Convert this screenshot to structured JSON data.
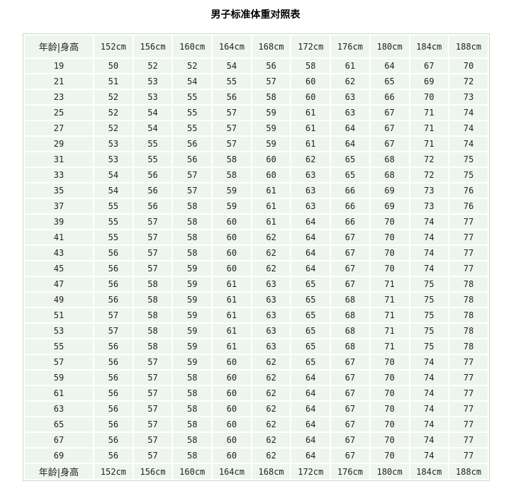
{
  "title": "男子标准体重对照表",
  "table": {
    "corner_label": "年龄|身高",
    "heights": [
      "152cm",
      "156cm",
      "160cm",
      "164cm",
      "168cm",
      "172cm",
      "176cm",
      "180cm",
      "184cm",
      "188cm"
    ],
    "rows": [
      {
        "age": "19",
        "weights": [
          50,
          52,
          52,
          54,
          56,
          58,
          61,
          64,
          67,
          70
        ]
      },
      {
        "age": "21",
        "weights": [
          51,
          53,
          54,
          55,
          57,
          60,
          62,
          65,
          69,
          72
        ]
      },
      {
        "age": "23",
        "weights": [
          52,
          53,
          55,
          56,
          58,
          60,
          63,
          66,
          70,
          73
        ]
      },
      {
        "age": "25",
        "weights": [
          52,
          54,
          55,
          57,
          59,
          61,
          63,
          67,
          71,
          74
        ]
      },
      {
        "age": "27",
        "weights": [
          52,
          54,
          55,
          57,
          59,
          61,
          64,
          67,
          71,
          74
        ]
      },
      {
        "age": "29",
        "weights": [
          53,
          55,
          56,
          57,
          59,
          61,
          64,
          67,
          71,
          74
        ]
      },
      {
        "age": "31",
        "weights": [
          53,
          55,
          56,
          58,
          60,
          62,
          65,
          68,
          72,
          75
        ]
      },
      {
        "age": "33",
        "weights": [
          54,
          56,
          57,
          58,
          60,
          63,
          65,
          68,
          72,
          75
        ]
      },
      {
        "age": "35",
        "weights": [
          54,
          56,
          57,
          59,
          61,
          63,
          66,
          69,
          73,
          76
        ]
      },
      {
        "age": "37",
        "weights": [
          55,
          56,
          58,
          59,
          61,
          63,
          66,
          69,
          73,
          76
        ]
      },
      {
        "age": "39",
        "weights": [
          55,
          57,
          58,
          60,
          61,
          64,
          66,
          70,
          74,
          77
        ]
      },
      {
        "age": "41",
        "weights": [
          55,
          57,
          58,
          60,
          62,
          64,
          67,
          70,
          74,
          77
        ]
      },
      {
        "age": "43",
        "weights": [
          56,
          57,
          58,
          60,
          62,
          64,
          67,
          70,
          74,
          77
        ]
      },
      {
        "age": "45",
        "weights": [
          56,
          57,
          59,
          60,
          62,
          64,
          67,
          70,
          74,
          77
        ]
      },
      {
        "age": "47",
        "weights": [
          56,
          58,
          59,
          61,
          63,
          65,
          67,
          71,
          75,
          78
        ]
      },
      {
        "age": "49",
        "weights": [
          56,
          58,
          59,
          61,
          63,
          65,
          68,
          71,
          75,
          78
        ]
      },
      {
        "age": "51",
        "weights": [
          57,
          58,
          59,
          61,
          63,
          65,
          68,
          71,
          75,
          78
        ]
      },
      {
        "age": "53",
        "weights": [
          57,
          58,
          59,
          61,
          63,
          65,
          68,
          71,
          75,
          78
        ]
      },
      {
        "age": "55",
        "weights": [
          56,
          58,
          59,
          61,
          63,
          65,
          68,
          71,
          75,
          78
        ]
      },
      {
        "age": "57",
        "weights": [
          56,
          57,
          59,
          60,
          62,
          65,
          67,
          70,
          74,
          77
        ]
      },
      {
        "age": "59",
        "weights": [
          56,
          57,
          58,
          60,
          62,
          64,
          67,
          70,
          74,
          77
        ]
      },
      {
        "age": "61",
        "weights": [
          56,
          57,
          58,
          60,
          62,
          64,
          67,
          70,
          74,
          77
        ]
      },
      {
        "age": "63",
        "weights": [
          56,
          57,
          58,
          60,
          62,
          64,
          67,
          70,
          74,
          77
        ]
      },
      {
        "age": "65",
        "weights": [
          56,
          57,
          58,
          60,
          62,
          64,
          67,
          70,
          74,
          77
        ]
      },
      {
        "age": "67",
        "weights": [
          56,
          57,
          58,
          60,
          62,
          64,
          67,
          70,
          74,
          77
        ]
      },
      {
        "age": "69",
        "weights": [
          56,
          57,
          58,
          60,
          62,
          64,
          67,
          70,
          74,
          77
        ]
      }
    ]
  }
}
